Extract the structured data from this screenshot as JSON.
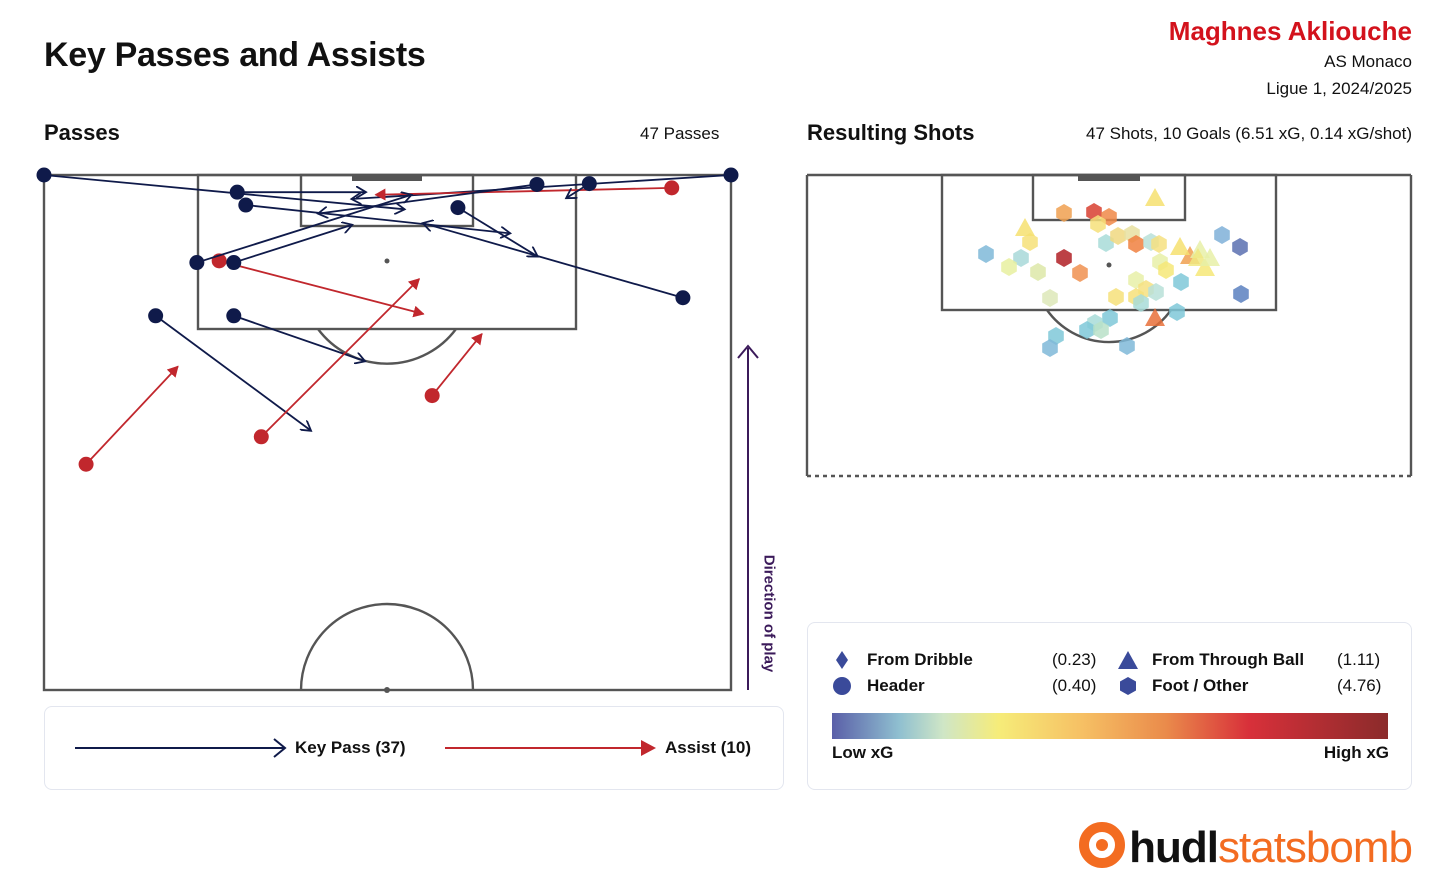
{
  "title": "Key Passes and Assists",
  "player": {
    "name": "Maghnes Akliouche",
    "team": "AS Monaco",
    "competition": "Ligue 1, 2024/2025"
  },
  "passes_panel": {
    "title": "Passes",
    "subtitle": "47 Passes",
    "direction_label": "Direction of play"
  },
  "shots_panel": {
    "title": "Resulting Shots",
    "subtitle": "47 Shots, 10 Goals (6.51 xG, 0.14 xG/shot)"
  },
  "pass_legend": {
    "key_pass": "Key Pass (37)",
    "assist": "Assist (10)"
  },
  "shot_legend": {
    "items": [
      {
        "label": "From Dribble",
        "value": "(0.23)",
        "marker": "diamond"
      },
      {
        "label": "Header",
        "value": "(0.40)",
        "marker": "circle"
      },
      {
        "label": "From Through Ball",
        "value": "(1.11)",
        "marker": "triangle"
      },
      {
        "label": "Foot / Other",
        "value": "(4.76)",
        "marker": "hexagon"
      }
    ],
    "low": "Low xG",
    "high": "High xG"
  },
  "colors": {
    "key_pass": "#0f1a4a",
    "assist": "#c1272d",
    "player": "#d3121c",
    "direction": "#3b1a5a",
    "logo_accent": "#f36c21"
  },
  "logo": {
    "part1": "hudl",
    "part2": "statsbomb"
  },
  "chart_data": [
    {
      "type": "scatter",
      "name": "passes",
      "xlim": [
        60,
        120
      ],
      "ylim": [
        0,
        80
      ],
      "note_units": "StatsBomb pitch coordinates (start -> end)",
      "passes": [
        {
          "kind": "key",
          "x0": 120.0,
          "y0": 80.0,
          "x1": 117.2,
          "y1": 35.8
        },
        {
          "kind": "key",
          "x0": 120.0,
          "y0": 0.0,
          "x1": 116.0,
          "y1": 42.0
        },
        {
          "kind": "assist",
          "x0": 118.5,
          "y0": 73.1,
          "x1": 117.7,
          "y1": 38.6
        },
        {
          "kind": "key",
          "x0": 119.0,
          "y0": 63.5,
          "x1": 117.3,
          "y1": 60.8
        },
        {
          "kind": "key",
          "x0": 118.9,
          "y0": 57.4,
          "x1": 115.5,
          "y1": 31.9
        },
        {
          "kind": "key",
          "x0": 118.0,
          "y0": 22.5,
          "x1": 118.0,
          "y1": 37.5
        },
        {
          "kind": "key",
          "x0": 116.5,
          "y0": 23.5,
          "x1": 113.2,
          "y1": 54.3
        },
        {
          "kind": "key",
          "x0": 116.2,
          "y0": 48.2,
          "x1": 110.5,
          "y1": 57.5
        },
        {
          "kind": "assist",
          "x0": 110.0,
          "y0": 20.4,
          "x1": 103.8,
          "y1": 44.2
        },
        {
          "kind": "key",
          "x0": 109.8,
          "y0": 22.1,
          "x1": 114.2,
          "y1": 35.9
        },
        {
          "kind": "key",
          "x0": 109.8,
          "y0": 17.8,
          "x1": 117.7,
          "y1": 42.8
        },
        {
          "kind": "key",
          "x0": 103.6,
          "y0": 22.1,
          "x1": 98.3,
          "y1": 37.4
        },
        {
          "kind": "key",
          "x0": 103.6,
          "y0": 13.0,
          "x1": 90.2,
          "y1": 31.1
        },
        {
          "kind": "key",
          "x0": 105.7,
          "y0": 74.4,
          "x1": 114.4,
          "y1": 44.1
        },
        {
          "kind": "assist",
          "x0": 89.5,
          "y0": 25.3,
          "x1": 107.9,
          "y1": 43.7
        },
        {
          "kind": "assist",
          "x0": 94.3,
          "y0": 45.2,
          "x1": 101.5,
          "y1": 51.0
        },
        {
          "kind": "assist",
          "x0": 86.3,
          "y0": 4.9,
          "x1": 97.7,
          "y1": 15.6
        }
      ]
    },
    {
      "type": "scatter",
      "name": "resulting_shots",
      "xlim": [
        60,
        120
      ],
      "ylim": [
        0,
        80
      ],
      "total_shots": 47,
      "goals": 10,
      "total_xg": 6.51,
      "xg_per_shot": 0.14
    }
  ]
}
